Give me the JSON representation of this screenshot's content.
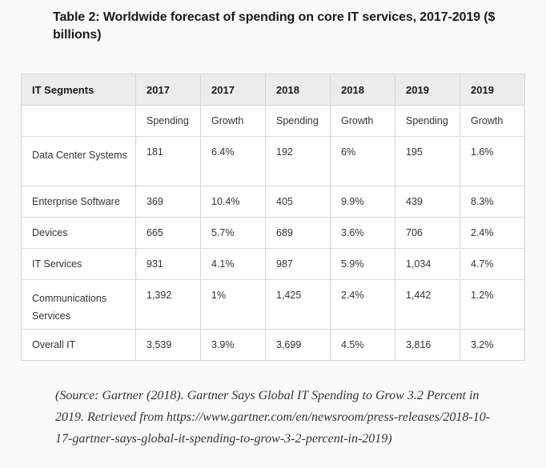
{
  "title": "Table 2: Worldwide forecast of spending on core IT services, 2017-2019 ($ billions)",
  "table": {
    "headers": [
      "IT Segments",
      "2017",
      "2017",
      "2018",
      "2018",
      "2019",
      "2019"
    ],
    "subheaders": [
      "",
      "Spending",
      "Growth",
      "Spending",
      "Growth",
      "Spending",
      "Growth"
    ],
    "rows": [
      {
        "segment": "Data Center Systems",
        "values": [
          "181",
          "6.4%",
          "192",
          "6%",
          "195",
          "1.6%"
        ]
      },
      {
        "segment": "Enterprise Software",
        "values": [
          "369",
          "10.4%",
          "405",
          "9.9%",
          "439",
          "8.3%"
        ]
      },
      {
        "segment": "Devices",
        "values": [
          "665",
          "5.7%",
          "689",
          "3.6%",
          "706",
          "2.4%"
        ]
      },
      {
        "segment": "IT Services",
        "values": [
          "931",
          "4.1%",
          "987",
          "5.9%",
          "1,034",
          "4.7%"
        ]
      },
      {
        "segment": "Communications Services",
        "values": [
          "1,392",
          "1%",
          "1,425",
          "2.4%",
          "1,442",
          "1.2%"
        ]
      },
      {
        "segment": "Overall IT",
        "values": [
          "3,539",
          "3.9%",
          "3,699",
          "4.5%",
          "3,816",
          "3.2%"
        ]
      }
    ]
  },
  "source": "(Source: Gartner (2018). Gartner Says Global IT Spending to Grow 3.2 Percent in 2019. Retrieved from https://www.gartner.com/en/newsroom/press-releases/2018-10-17-gartner-says-global-it-spending-to-grow-3-2-percent-in-2019)"
}
